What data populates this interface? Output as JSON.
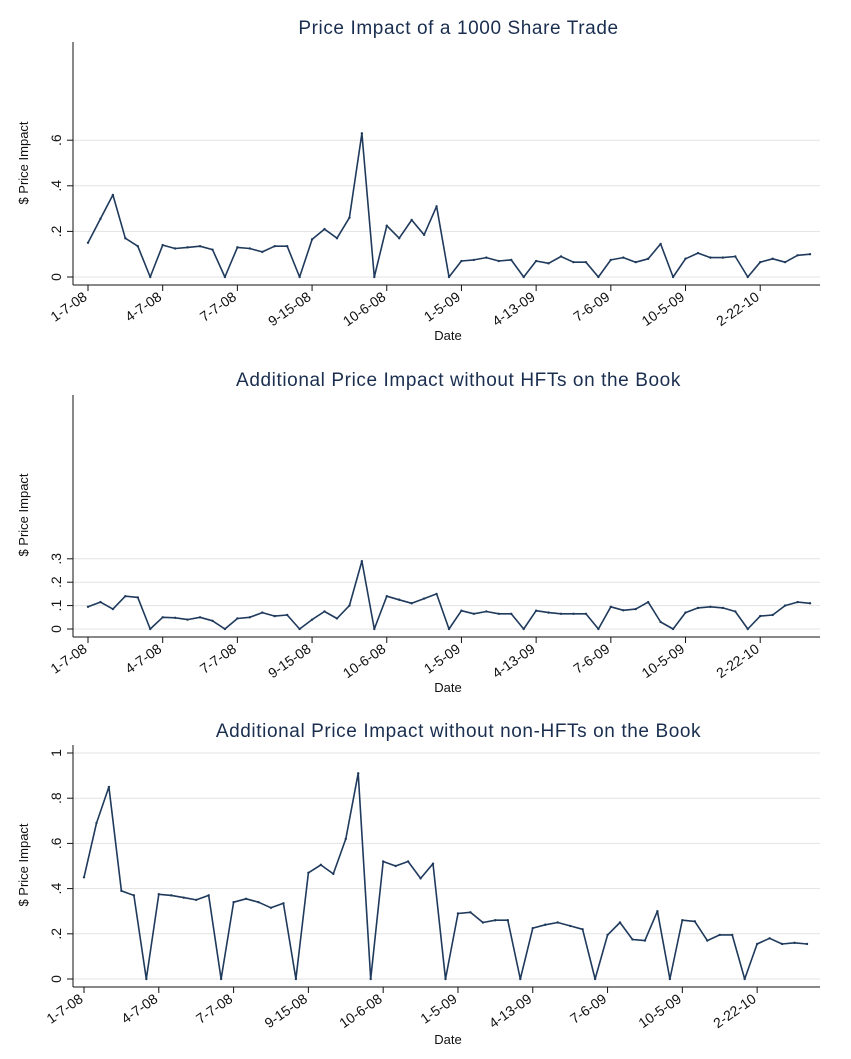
{
  "chart_data": [
    {
      "type": "line",
      "title": "Price Impact of a 1000 Share Trade",
      "xlabel": "Date",
      "ylabel": "$ Price Impact",
      "ylim": [
        0,
        1.0
      ],
      "yticks": [
        0,
        0.2,
        0.4,
        0.6
      ],
      "ytick_labels": [
        "0",
        ".2",
        ".4",
        ".6"
      ],
      "xtick_labels": [
        "1-7-08",
        "4-7-08",
        "7-7-08",
        "9-15-08",
        "10-6-08",
        "1-5-09",
        "4-13-09",
        "7-6-09",
        "10-5-09",
        "2-22-10"
      ],
      "xtick_positions": [
        0,
        6,
        12,
        18,
        24,
        30,
        36,
        42,
        48,
        54
      ],
      "grid": true,
      "x": [
        0,
        1,
        2,
        3,
        4,
        5,
        6,
        7,
        8,
        9,
        10,
        11,
        12,
        13,
        14,
        15,
        16,
        17,
        18,
        19,
        20,
        21,
        22,
        23,
        24,
        25,
        26,
        27,
        28,
        29,
        30,
        31,
        32,
        33,
        34,
        35,
        36,
        37,
        38,
        39,
        40,
        41,
        42,
        43,
        44,
        45,
        46,
        47,
        48,
        49,
        50,
        51,
        52,
        53,
        54,
        55,
        56,
        57,
        58
      ],
      "values": [
        0.15,
        0.255,
        0.36,
        0.17,
        0.135,
        0.0,
        0.14,
        0.125,
        0.13,
        0.135,
        0.12,
        0.0,
        0.13,
        0.125,
        0.11,
        0.135,
        0.135,
        0.0,
        0.165,
        0.21,
        0.17,
        0.26,
        0.63,
        0.0,
        0.225,
        0.17,
        0.25,
        0.185,
        0.31,
        0.0,
        0.07,
        0.075,
        0.085,
        0.07,
        0.075,
        0.0,
        0.07,
        0.06,
        0.09,
        0.065,
        0.065,
        0.0,
        0.075,
        0.085,
        0.065,
        0.08,
        0.145,
        0.0,
        0.08,
        0.105,
        0.085,
        0.085,
        0.09,
        0.0,
        0.065,
        0.08,
        0.065,
        0.095,
        0.1
      ]
    },
    {
      "type": "line",
      "title": "Additional Price Impact without HFTs on the Book",
      "xlabel": "Date",
      "ylabel": "$ Price Impact",
      "ylim": [
        0,
        1.0
      ],
      "yticks": [
        0,
        0.1,
        0.2,
        0.3
      ],
      "ytick_labels": [
        "0",
        ".1",
        ".2",
        ".3"
      ],
      "xtick_labels": [
        "1-7-08",
        "4-7-08",
        "7-7-08",
        "9-15-08",
        "10-6-08",
        "1-5-09",
        "4-13-09",
        "7-6-09",
        "10-5-09",
        "2-22-10"
      ],
      "xtick_positions": [
        0,
        6,
        12,
        18,
        24,
        30,
        36,
        42,
        48,
        54
      ],
      "grid": true,
      "x": [
        0,
        1,
        2,
        3,
        4,
        5,
        6,
        7,
        8,
        9,
        10,
        11,
        12,
        13,
        14,
        15,
        16,
        17,
        18,
        19,
        20,
        21,
        22,
        23,
        24,
        25,
        26,
        27,
        28,
        29,
        30,
        31,
        32,
        33,
        34,
        35,
        36,
        37,
        38,
        39,
        40,
        41,
        42,
        43,
        44,
        45,
        46,
        47,
        48,
        49,
        50,
        51,
        52,
        53,
        54,
        55,
        56,
        57,
        58
      ],
      "values": [
        0.095,
        0.115,
        0.085,
        0.14,
        0.135,
        0.0,
        0.05,
        0.048,
        0.04,
        0.05,
        0.035,
        0.0,
        0.045,
        0.05,
        0.07,
        0.055,
        0.06,
        0.0,
        0.04,
        0.075,
        0.045,
        0.1,
        0.29,
        0.0,
        0.14,
        0.125,
        0.11,
        0.13,
        0.15,
        0.0,
        0.078,
        0.065,
        0.075,
        0.065,
        0.065,
        0.0,
        0.078,
        0.07,
        0.065,
        0.065,
        0.065,
        0.0,
        0.095,
        0.08,
        0.085,
        0.115,
        0.03,
        0.0,
        0.07,
        0.09,
        0.095,
        0.09,
        0.075,
        0.0,
        0.055,
        0.06,
        0.1,
        0.115,
        0.11
      ]
    },
    {
      "type": "line",
      "title": "Additional Price Impact without non-HFTs on the Book",
      "xlabel": "Date",
      "ylabel": "$ Price Impact",
      "ylim": [
        0,
        1.0
      ],
      "yticks": [
        0,
        0.2,
        0.4,
        0.6,
        0.8,
        1.0
      ],
      "ytick_labels": [
        "0",
        ".2",
        ".4",
        ".6",
        ".8",
        "1"
      ],
      "xtick_labels": [
        "1-7-08",
        "4-7-08",
        "7-7-08",
        "9-15-08",
        "10-6-08",
        "1-5-09",
        "4-13-09",
        "7-6-09",
        "10-5-09",
        "2-22-10"
      ],
      "xtick_positions": [
        0,
        6,
        12,
        18,
        24,
        30,
        36,
        42,
        48,
        54
      ],
      "grid": true,
      "x": [
        0,
        1,
        2,
        3,
        4,
        5,
        6,
        7,
        8,
        9,
        10,
        11,
        12,
        13,
        14,
        15,
        16,
        17,
        18,
        19,
        20,
        21,
        22,
        23,
        24,
        25,
        26,
        27,
        28,
        29,
        30,
        31,
        32,
        33,
        34,
        35,
        36,
        37,
        38,
        39,
        40,
        41,
        42,
        43,
        44,
        45,
        46,
        47,
        48,
        49,
        50,
        51,
        52,
        53,
        54,
        55,
        56,
        57,
        58
      ],
      "values": [
        0.45,
        0.69,
        0.85,
        0.39,
        0.37,
        0.0,
        0.375,
        0.37,
        0.36,
        0.35,
        0.37,
        0.0,
        0.34,
        0.355,
        0.34,
        0.315,
        0.335,
        0.0,
        0.47,
        0.505,
        0.465,
        0.62,
        0.91,
        0.0,
        0.52,
        0.5,
        0.52,
        0.445,
        0.51,
        0.0,
        0.29,
        0.295,
        0.25,
        0.26,
        0.26,
        0.0,
        0.225,
        0.24,
        0.25,
        0.235,
        0.22,
        0.0,
        0.195,
        0.25,
        0.175,
        0.17,
        0.3,
        0.0,
        0.26,
        0.255,
        0.17,
        0.195,
        0.195,
        0.0,
        0.155,
        0.18,
        0.155,
        0.16,
        0.155
      ]
    }
  ]
}
